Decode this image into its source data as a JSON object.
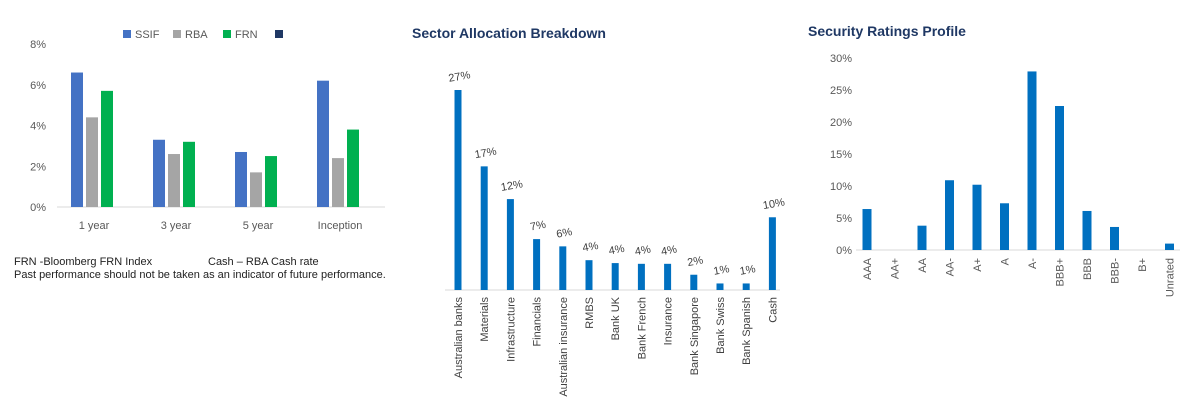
{
  "chart_data": [
    {
      "type": "bar",
      "title": "",
      "categories": [
        "1 year",
        "3 year",
        "5 year",
        "Inception"
      ],
      "series": [
        {
          "name": "SSIF",
          "color": "#4472c4",
          "values": [
            6.6,
            3.3,
            2.7,
            6.2
          ]
        },
        {
          "name": "RBA",
          "color": "#a5a5a5",
          "values": [
            4.4,
            2.6,
            1.7,
            2.4
          ]
        },
        {
          "name": "FRN",
          "color": "#00b050",
          "values": [
            5.7,
            3.2,
            2.5,
            3.8
          ]
        },
        {
          "name": "",
          "color": "#1f3864",
          "values": [
            null,
            null,
            null,
            null
          ]
        }
      ],
      "yticks": [
        "0%",
        "2%",
        "4%",
        "6%",
        "8%"
      ],
      "ylim": [
        0,
        8
      ],
      "grid": false,
      "legend": "top"
    },
    {
      "type": "bar",
      "title": "Sector Allocation Breakdown",
      "categories": [
        "Australian banks",
        "Materials",
        "Infrastructure",
        "Financials",
        "Australian insurance",
        "RMBS",
        "Bank UK",
        "Bank French",
        "Insurance",
        "Bank Singapore",
        "Bank Swiss",
        "Bank Spanish",
        "Cash"
      ],
      "values": [
        27,
        17,
        12,
        7,
        6,
        4,
        4,
        4,
        4,
        2,
        1,
        1,
        10
      ],
      "plot_values": [
        27.5,
        17.0,
        12.5,
        7.0,
        6.0,
        4.1,
        3.7,
        3.6,
        3.6,
        2.1,
        0.9,
        0.9,
        10.0
      ],
      "data_labels": [
        "27%",
        "17%",
        "12%",
        "7%",
        "6%",
        "4%",
        "4%",
        "4%",
        "4%",
        "2%",
        "1%",
        "1%",
        "10%"
      ],
      "color": "#0070c0",
      "ylim": [
        0,
        30
      ]
    },
    {
      "type": "bar",
      "title": "Security Ratings Profile",
      "categories": [
        "AAA",
        "AA+",
        "AA",
        "AA-",
        "A+",
        "A",
        "A-",
        "BBB+",
        "BBB",
        "BBB-",
        "B+",
        "Unrated"
      ],
      "values": [
        6.4,
        0,
        3.8,
        10.9,
        10.2,
        7.3,
        27.9,
        22.5,
        6.1,
        3.6,
        0,
        1.0
      ],
      "yticks": [
        "0%",
        "5%",
        "10%",
        "15%",
        "20%",
        "25%",
        "30%"
      ],
      "ylim": [
        0,
        30
      ],
      "color": "#0070c0",
      "grid": false
    }
  ],
  "notes": {
    "line1_left": "FRN -Bloomberg FRN Index",
    "line1_right": "Cash – RBA Cash rate",
    "line2": "Past performance should not be taken as an indicator of future performance."
  }
}
